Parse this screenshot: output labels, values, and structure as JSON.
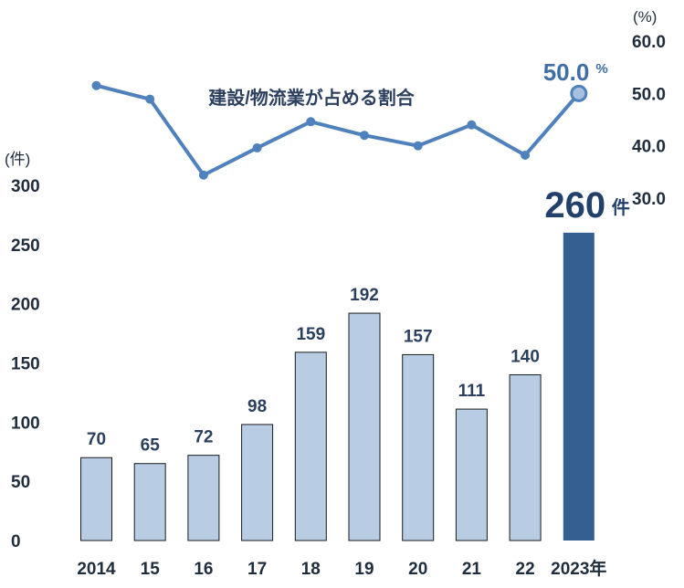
{
  "chart_data": [
    {
      "type": "bar",
      "ylabel": "(件)",
      "ylim": [
        0,
        300
      ],
      "yticks": [
        "0",
        "50",
        "100",
        "150",
        "200",
        "250",
        "300"
      ],
      "categories": [
        "2014",
        "15",
        "16",
        "17",
        "18",
        "19",
        "20",
        "21",
        "22",
        "2023年"
      ],
      "values": [
        70,
        65,
        72,
        98,
        159,
        192,
        157,
        111,
        140,
        260
      ],
      "data_labels": [
        "70",
        "65",
        "72",
        "98",
        "159",
        "192",
        "157",
        "111",
        "140",
        ""
      ],
      "highlight": {
        "value_text": "260",
        "unit_text": "件"
      },
      "colors": {
        "bar": "#b8cce4",
        "highlight_bar": "#365f91",
        "bar_edge": "#1a1a1a"
      },
      "grid": false
    },
    {
      "type": "line",
      "series": [
        {
          "name": "建設/物流業が占める割合",
          "values": [
            51.5,
            48.9,
            34.4,
            39.6,
            44.6,
            42.0,
            40.0,
            44.0,
            38.2,
            50.0
          ]
        }
      ],
      "ylabel": "(%)",
      "yticks": [
        "30.0",
        "40.0",
        "50.0",
        "60.0"
      ],
      "ylim": [
        30,
        60
      ],
      "highlight": {
        "value_text": "50.0",
        "unit_text": "%"
      },
      "colors": {
        "line": "#4f81bd",
        "marker": "#4f81bd",
        "highlight_marker": "#a7c0e0"
      }
    }
  ]
}
